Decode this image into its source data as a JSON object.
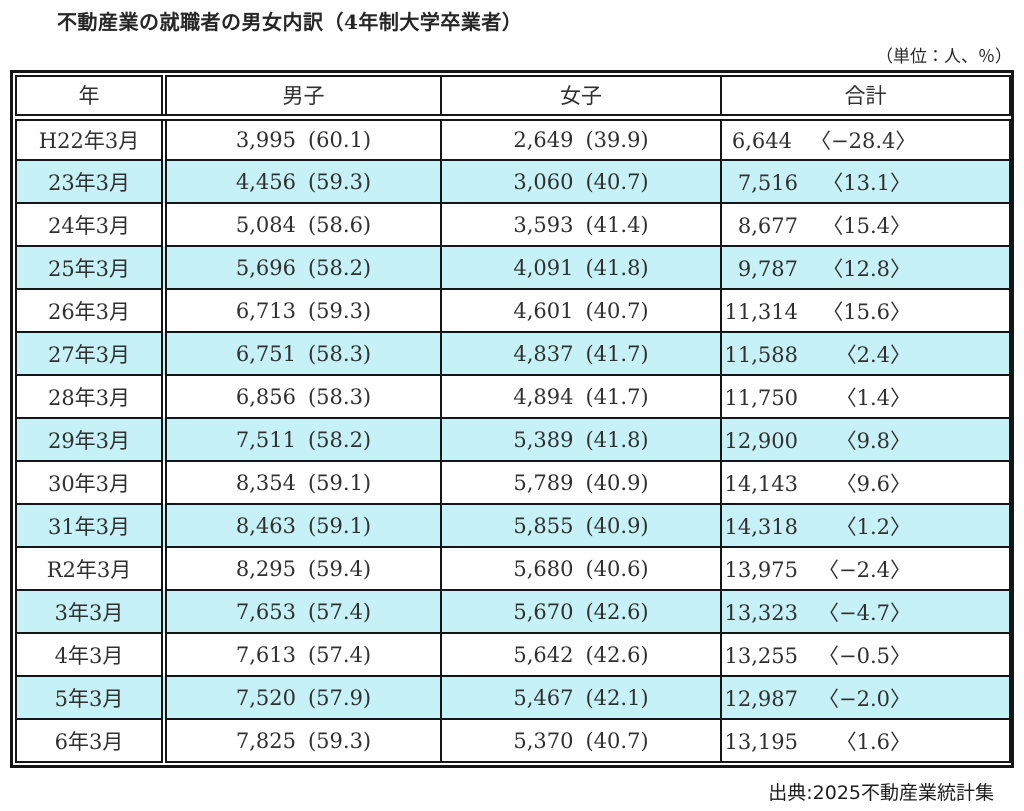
{
  "title": "不動産業の就職者の男女内訳（4年制大学卒業者）",
  "unit_note": "（単位：人、％）",
  "source": "出典:2025不動産業統計集",
  "colors": {
    "row_alt": "#c6f1f7",
    "border": "#161616",
    "text": "#303030"
  },
  "table": {
    "headers": [
      "年",
      "男子",
      "女子",
      "合計"
    ],
    "rows": [
      {
        "year": "H22年3月",
        "male": "3,995",
        "male_pct": "(60.1)",
        "female": "2,649",
        "female_pct": "(39.9)",
        "total": "6,644",
        "total_change": "〈−28.4〉"
      },
      {
        "year": "23年3月",
        "male": "4,456",
        "male_pct": "(59.3)",
        "female": "3,060",
        "female_pct": "(40.7)",
        "total": "7,516",
        "total_change": "〈13.1〉"
      },
      {
        "year": "24年3月",
        "male": "5,084",
        "male_pct": "(58.6)",
        "female": "3,593",
        "female_pct": "(41.4)",
        "total": "8,677",
        "total_change": "〈15.4〉"
      },
      {
        "year": "25年3月",
        "male": "5,696",
        "male_pct": "(58.2)",
        "female": "4,091",
        "female_pct": "(41.8)",
        "total": "9,787",
        "total_change": "〈12.8〉"
      },
      {
        "year": "26年3月",
        "male": "6,713",
        "male_pct": "(59.3)",
        "female": "4,601",
        "female_pct": "(40.7)",
        "total": "11,314",
        "total_change": "〈15.6〉"
      },
      {
        "year": "27年3月",
        "male": "6,751",
        "male_pct": "(58.3)",
        "female": "4,837",
        "female_pct": "(41.7)",
        "total": "11,588",
        "total_change": "〈2.4〉"
      },
      {
        "year": "28年3月",
        "male": "6,856",
        "male_pct": "(58.3)",
        "female": "4,894",
        "female_pct": "(41.7)",
        "total": "11,750",
        "total_change": "〈1.4〉"
      },
      {
        "year": "29年3月",
        "male": "7,511",
        "male_pct": "(58.2)",
        "female": "5,389",
        "female_pct": "(41.8)",
        "total": "12,900",
        "total_change": "〈9.8〉"
      },
      {
        "year": "30年3月",
        "male": "8,354",
        "male_pct": "(59.1)",
        "female": "5,789",
        "female_pct": "(40.9)",
        "total": "14,143",
        "total_change": "〈9.6〉"
      },
      {
        "year": "31年3月",
        "male": "8,463",
        "male_pct": "(59.1)",
        "female": "5,855",
        "female_pct": "(40.9)",
        "total": "14,318",
        "total_change": "〈1.2〉"
      },
      {
        "year": "R2年3月",
        "male": "8,295",
        "male_pct": "(59.4)",
        "female": "5,680",
        "female_pct": "(40.6)",
        "total": "13,975",
        "total_change": "〈−2.4〉"
      },
      {
        "year": "3年3月",
        "male": "7,653",
        "male_pct": "(57.4)",
        "female": "5,670",
        "female_pct": "(42.6)",
        "total": "13,323",
        "total_change": "〈−4.7〉"
      },
      {
        "year": "4年3月",
        "male": "7,613",
        "male_pct": "(57.4)",
        "female": "5,642",
        "female_pct": "(42.6)",
        "total": "13,255",
        "total_change": "〈−0.5〉"
      },
      {
        "year": "5年3月",
        "male": "7,520",
        "male_pct": "(57.9)",
        "female": "5,467",
        "female_pct": "(42.1)",
        "total": "12,987",
        "total_change": "〈−2.0〉"
      },
      {
        "year": "6年3月",
        "male": "7,825",
        "male_pct": "(59.3)",
        "female": "5,370",
        "female_pct": "(40.7)",
        "total": "13,195",
        "total_change": "〈1.6〉"
      }
    ]
  }
}
